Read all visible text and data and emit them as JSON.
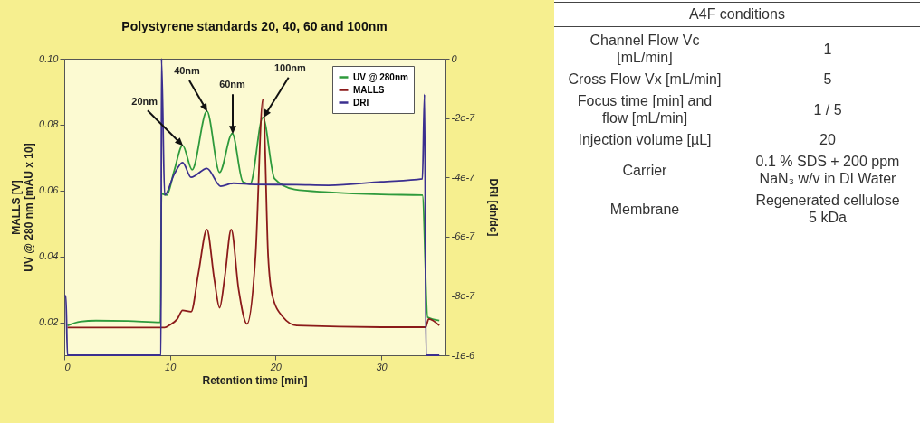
{
  "chart_data": [
    {
      "type": "line",
      "title": "Polystyrene standards 20, 40, 60 and 100nm",
      "xlabel": "Retention time [min]",
      "ylabel": "MALLS [V]\nUV @ 280 nm [mAU x 10]",
      "y2label": "DRI [dn/dc]",
      "xlim": [
        0,
        36
      ],
      "xticks": [
        0,
        10,
        20,
        30
      ],
      "ylim": [
        0.01,
        0.1
      ],
      "yticks": [
        0.02,
        0.04,
        0.06,
        0.08,
        {
          "value": 0.1,
          "label": "0.10"
        }
      ],
      "y2lim": [
        -1e-06,
        0
      ],
      "y2ticks": [
        {
          "value": 0,
          "label": "0"
        },
        {
          "value": -2e-07,
          "label": "-2e-7"
        },
        {
          "value": -4e-07,
          "label": "-4e-7"
        },
        {
          "value": -6e-07,
          "label": "-6e-7"
        },
        {
          "value": -8e-07,
          "label": "-8e-7"
        },
        {
          "value": -1e-06,
          "label": "-1e-6"
        }
      ],
      "legend": "top right",
      "series": [
        {
          "name": "UV @ 280nm",
          "color": "#2e9a3c",
          "x": [
            0.3,
            1.5,
            3,
            6,
            9.1,
            9.2,
            9.7,
            10.4,
            11.2,
            12.1,
            13.5,
            14.7,
            15.9,
            16.9,
            17.6,
            18.8,
            19.9,
            21.8,
            25,
            30,
            33.9,
            34.4,
            35.5
          ],
          "values": [
            0.019,
            0.0202,
            0.0205,
            0.0204,
            0.02,
            0.059,
            0.0586,
            0.066,
            0.0737,
            0.0663,
            0.0841,
            0.0655,
            0.0773,
            0.0627,
            0.062,
            0.0822,
            0.0636,
            0.0603,
            0.0595,
            0.0588,
            0.0586,
            0.0215,
            0.0205
          ]
        },
        {
          "name": "MALLS",
          "color": "#8b1a1a",
          "x": [
            0.3,
            5,
            9.5,
            10,
            10.7,
            11.2,
            12,
            12.7,
            13.5,
            14.2,
            14.7,
            15.2,
            15.8,
            16.5,
            17.3,
            18.1,
            18.8,
            19.3,
            19.7,
            20.7,
            22,
            30,
            34.2,
            34.5,
            35.5
          ],
          "values": [
            0.0184,
            0.0184,
            0.0184,
            0.0192,
            0.021,
            0.0236,
            0.0232,
            0.035,
            0.0482,
            0.033,
            0.0244,
            0.034,
            0.0482,
            0.03,
            0.0195,
            0.04,
            0.0877,
            0.04,
            0.028,
            0.0216,
            0.019,
            0.0185,
            0.0185,
            0.021,
            0.019
          ]
        },
        {
          "name": "DRI",
          "color": "#3b2f8f",
          "axis": "y2",
          "x": [
            0,
            0.15,
            0.3,
            9.15,
            9.2,
            9.5,
            10.4,
            11.2,
            12,
            13.5,
            14.8,
            16,
            18,
            22,
            25,
            30,
            33.9,
            34.1,
            34.25,
            35.5
          ],
          "values": [
            -8e-07,
            -8e-07,
            -1e-06,
            -1e-06,
            0,
            -4.6e-07,
            -3.9e-07,
            -3.5e-07,
            -4e-07,
            -3.7e-07,
            -4.3e-07,
            -4.2e-07,
            -4.24e-07,
            -4.25e-07,
            -4.27e-07,
            -4.15e-07,
            -4.05e-07,
            -1.2e-07,
            -1e-06,
            -1e-06
          ]
        }
      ],
      "annotations": [
        {
          "text": "20nm",
          "x": 11.2,
          "y": 0.0737
        },
        {
          "text": "40nm",
          "x": 13.5,
          "y": 0.0841
        },
        {
          "text": "60nm",
          "x": 15.9,
          "y": 0.0773
        },
        {
          "text": "100nm",
          "x": 18.8,
          "y": 0.0822
        }
      ]
    },
    {
      "type": "other",
      "title": "A4F conditions",
      "annotations": [
        "Channel Flow Vc [mL/min]",
        "1",
        "Cross Flow Vx [mL/min]",
        "5",
        "Focus time [min] and flow [mL/min]",
        "1 / 5",
        "Injection volume [µL]",
        "20",
        "Carrier",
        "0.1 % SDS + 200 ppm NaN₃ w/v in DI Water",
        "Membrane",
        "Regenerated cellulose 5 kDa"
      ]
    }
  ]
}
